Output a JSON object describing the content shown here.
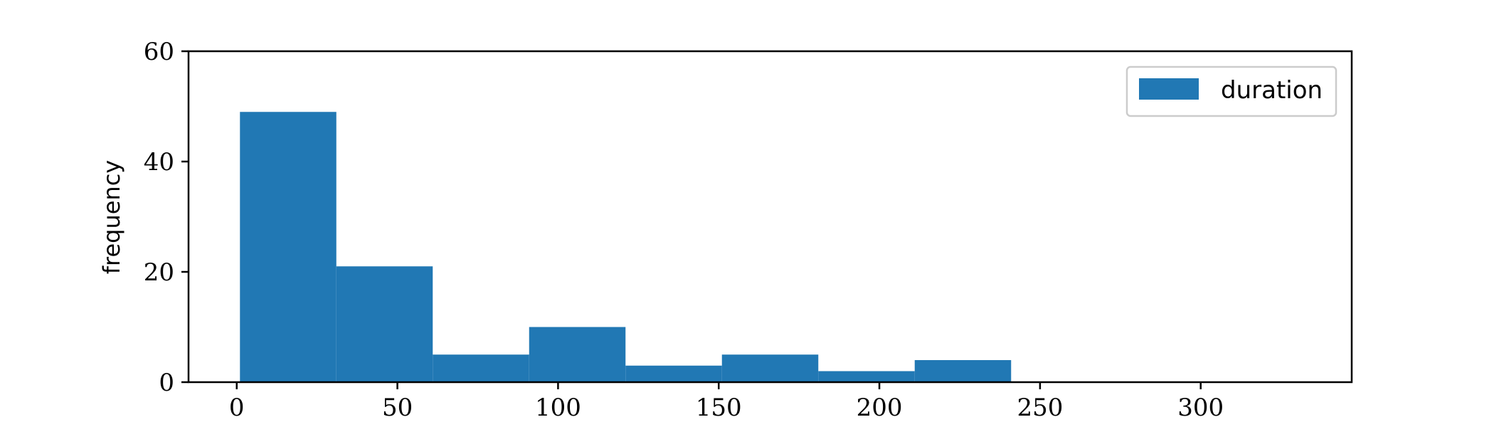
{
  "chart_data": {
    "type": "bar",
    "subtype": "histogram",
    "title": "",
    "xlabel": "",
    "ylabel": "frequency",
    "xlim": [
      -15,
      347
    ],
    "ylim": [
      0,
      60
    ],
    "xticks": [
      0,
      50,
      100,
      150,
      200,
      250,
      300
    ],
    "yticks": [
      0,
      20,
      40,
      60
    ],
    "grid": false,
    "legend": {
      "position": "top-right",
      "entries": [
        "duration"
      ]
    },
    "series": [
      {
        "name": "duration",
        "color": "#2178b4",
        "bins": [
          {
            "x0": 1,
            "x1": 31,
            "count": 49
          },
          {
            "x0": 31,
            "x1": 61,
            "count": 21
          },
          {
            "x0": 61,
            "x1": 91,
            "count": 5
          },
          {
            "x0": 91,
            "x1": 121,
            "count": 10
          },
          {
            "x0": 121,
            "x1": 151,
            "count": 3
          },
          {
            "x0": 151,
            "x1": 181,
            "count": 5
          },
          {
            "x0": 181,
            "x1": 211,
            "count": 2
          },
          {
            "x0": 211,
            "x1": 241,
            "count": 4
          }
        ]
      }
    ]
  }
}
